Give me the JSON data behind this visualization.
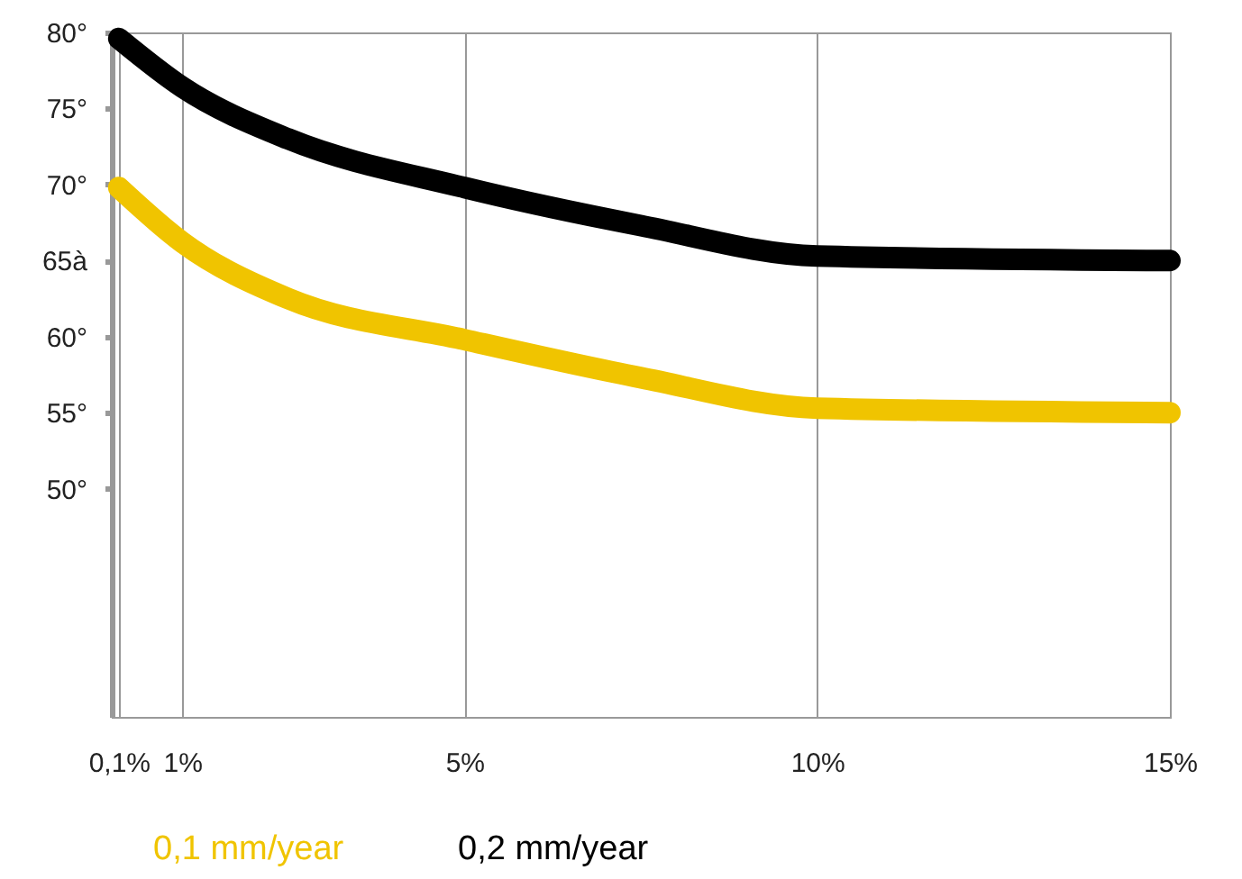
{
  "chart_data": {
    "type": "line",
    "xlim": [
      0,
      15
    ],
    "xticks": [
      {
        "value": 0.1,
        "label": "0,1%"
      },
      {
        "value": 1,
        "label": "1%"
      },
      {
        "value": 5,
        "label": "5%"
      },
      {
        "value": 10,
        "label": "10%"
      },
      {
        "value": 15,
        "label": "15%"
      }
    ],
    "ylim": [
      35,
      80
    ],
    "yticks": [
      {
        "value": 50,
        "label": "50°"
      },
      {
        "value": 55,
        "label": "55°"
      },
      {
        "value": 60,
        "label": "60°"
      },
      {
        "value": 65,
        "label": "65à"
      },
      {
        "value": 70,
        "label": "70°"
      },
      {
        "value": 75,
        "label": "75°"
      },
      {
        "value": 80,
        "label": "80°"
      }
    ],
    "grid": "x",
    "legend": "bottom",
    "line_style": "solid",
    "x": [
      0.1,
      1,
      2.5,
      5,
      7.5,
      10,
      15
    ],
    "series": [
      {
        "name": "0,1 mm/year",
        "color": "#f0c400",
        "values": [
          69.8,
          66.2,
          62.5,
          59.8,
          57.3,
          55.3,
          55
        ]
      },
      {
        "name": "0,2 mm/year",
        "color": "#000000",
        "values": [
          79.6,
          76.4,
          73,
          69.8,
          67.3,
          65.3,
          65
        ]
      }
    ]
  }
}
